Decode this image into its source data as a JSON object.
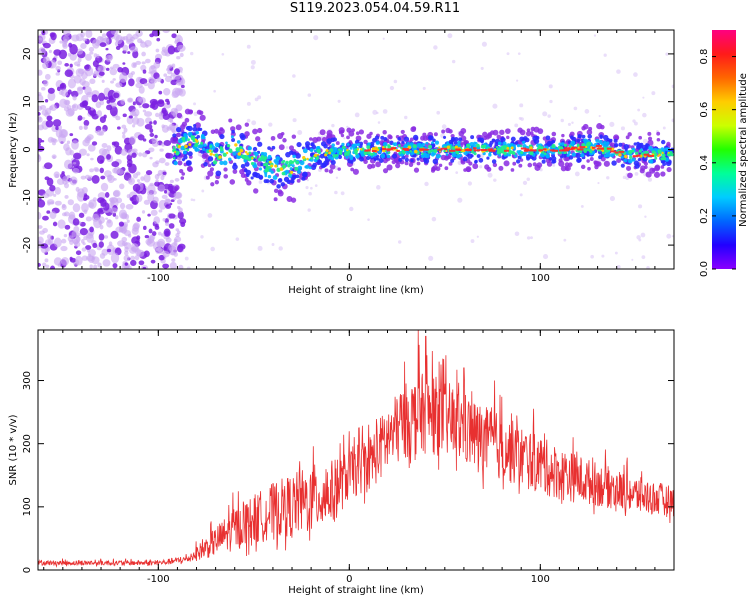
{
  "title": "S119.2023.054.04.59.R11",
  "colors": {
    "spectrogram_scatter": "#9b6bd6",
    "snr_line": "#e83030",
    "colorbar_stops": [
      "#8a00ff",
      "#2200ff",
      "#0066ff",
      "#00ccff",
      "#00ff99",
      "#22ff00",
      "#ccff00",
      "#ffcc00",
      "#ff6600",
      "#ff1a1a",
      "#ff0080"
    ]
  },
  "chart_data": [
    {
      "type": "heatmap",
      "xlabel": "Height of straight line (km)",
      "ylabel": "Frequency (Hz)",
      "xlim": [
        -163,
        170
      ],
      "ylim": [
        -25,
        25
      ],
      "x_ticks": [
        -100,
        0,
        100
      ],
      "x_tick_labels": [
        "-100",
        "0",
        "100"
      ],
      "y_ticks": [
        -20,
        -10,
        0,
        10,
        20
      ],
      "y_tick_labels": [
        "-20",
        "-10",
        "0",
        "10",
        "20"
      ],
      "noise_region_x": [
        -163,
        -90
      ],
      "signal_band": [
        {
          "x": -90,
          "y": 0.8
        },
        {
          "x": -80,
          "y": 1.5
        },
        {
          "x": -70,
          "y": -1.5
        },
        {
          "x": -60,
          "y": 0.5
        },
        {
          "x": -50,
          "y": -2.5
        },
        {
          "x": -40,
          "y": -3.5
        },
        {
          "x": -30,
          "y": -4.0
        },
        {
          "x": -20,
          "y": -1.5
        },
        {
          "x": -10,
          "y": -0.5
        },
        {
          "x": 0,
          "y": -0.3
        },
        {
          "x": 20,
          "y": 0.0
        },
        {
          "x": 50,
          "y": 0.0
        },
        {
          "x": 80,
          "y": 0.0
        },
        {
          "x": 110,
          "y": 0.0
        },
        {
          "x": 130,
          "y": 0.5
        },
        {
          "x": 145,
          "y": -1.2
        },
        {
          "x": 170,
          "y": -1.0
        }
      ],
      "colorbar": {
        "label": "Normalized spectral amplitude",
        "range": [
          0.0,
          0.9
        ],
        "ticks": [
          0.0,
          0.2,
          0.4,
          0.6,
          0.8
        ],
        "tick_labels": [
          "0.0",
          "0.2",
          "0.4",
          "0.6",
          "0.8"
        ]
      }
    },
    {
      "type": "line",
      "xlabel": "Height of straight line (km)",
      "ylabel": "SNR (10 * v/v)",
      "xlim": [
        -163,
        170
      ],
      "ylim": [
        0,
        380
      ],
      "x_ticks": [
        -100,
        0,
        100
      ],
      "x_tick_labels": [
        "-100",
        "0",
        "100"
      ],
      "y_ticks": [
        0,
        100,
        200,
        300
      ],
      "y_tick_labels": [
        "0",
        "100",
        "200",
        "300"
      ],
      "envelope": [
        {
          "x": -163,
          "base": 10,
          "amp": 8
        },
        {
          "x": -100,
          "base": 10,
          "amp": 8
        },
        {
          "x": -85,
          "base": 15,
          "amp": 12
        },
        {
          "x": -75,
          "base": 30,
          "amp": 35
        },
        {
          "x": -60,
          "base": 55,
          "amp": 70
        },
        {
          "x": -40,
          "base": 80,
          "amp": 90
        },
        {
          "x": -20,
          "base": 95,
          "amp": 110
        },
        {
          "x": -8,
          "base": 110,
          "amp": 100
        },
        {
          "x": 0,
          "base": 140,
          "amp": 80
        },
        {
          "x": 10,
          "base": 155,
          "amp": 90
        },
        {
          "x": 20,
          "base": 190,
          "amp": 110
        },
        {
          "x": 30,
          "base": 220,
          "amp": 120
        },
        {
          "x": 40,
          "base": 230,
          "amp": 130
        },
        {
          "x": 55,
          "base": 215,
          "amp": 120
        },
        {
          "x": 70,
          "base": 190,
          "amp": 110
        },
        {
          "x": 90,
          "base": 165,
          "amp": 100
        },
        {
          "x": 110,
          "base": 140,
          "amp": 85
        },
        {
          "x": 130,
          "base": 125,
          "amp": 70
        },
        {
          "x": 150,
          "base": 110,
          "amp": 60
        },
        {
          "x": 170,
          "base": 100,
          "amp": 50
        }
      ],
      "peak_values": [
        {
          "x": 36,
          "y": 380
        },
        {
          "x": 40,
          "y": 370
        },
        {
          "x": 29,
          "y": 330
        },
        {
          "x": 47,
          "y": 330
        },
        {
          "x": 60,
          "y": 320
        },
        {
          "x": 76,
          "y": 300
        }
      ]
    }
  ]
}
